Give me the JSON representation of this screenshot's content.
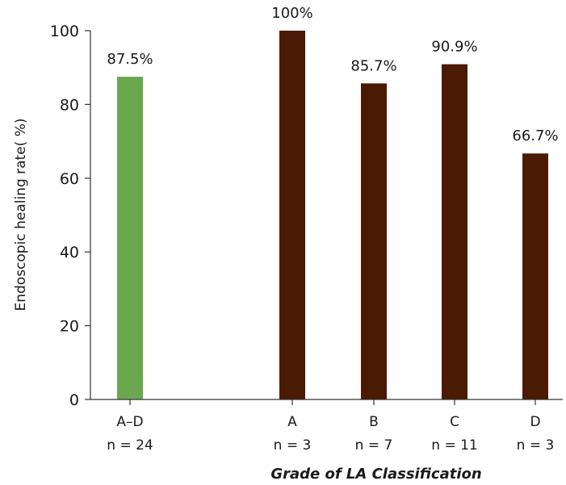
{
  "chart_data": {
    "type": "bar",
    "title": "",
    "ylabel": "Endoscopic healing rate( %)",
    "xlabel": "Grade of LA Classification",
    "ylim": [
      0,
      100
    ],
    "yticks": [
      "0",
      "20",
      "40",
      "60",
      "80",
      "100"
    ],
    "grid": false,
    "categories": [
      "A–D",
      "A",
      "B",
      "C",
      "D"
    ],
    "n_labels": [
      "n = 24",
      "n = 3",
      "n = 7",
      "n = 11",
      "n = 3"
    ],
    "values": [
      87.5,
      100,
      85.7,
      90.9,
      66.7
    ],
    "value_labels": [
      "87.5%",
      "100%",
      "85.7%",
      "90.9%",
      "66.7%"
    ],
    "colors": [
      "#6aa84f",
      "#4a1a04",
      "#4a1a04",
      "#4a1a04",
      "#4a1a04"
    ]
  }
}
